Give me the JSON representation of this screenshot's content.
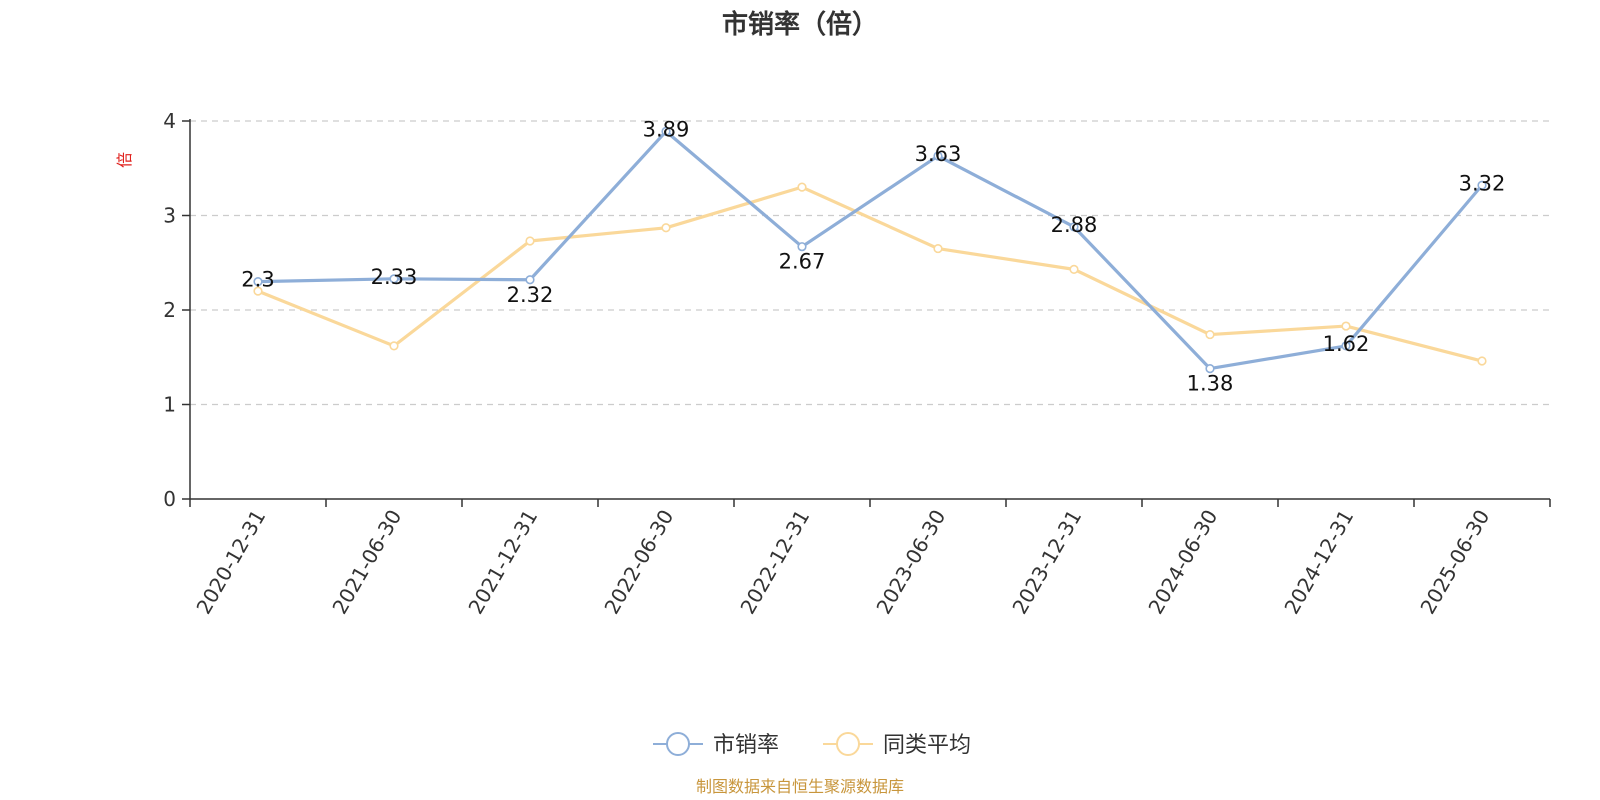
{
  "chart_data": {
    "type": "line",
    "title": "市销率（倍）",
    "ylabel": "倍",
    "ylim": [
      0,
      4
    ],
    "yticks": [
      0,
      1,
      2,
      3,
      4
    ],
    "x": [
      "2020-12-31",
      "2021-06-30",
      "2021-12-31",
      "2022-06-30",
      "2022-12-31",
      "2023-06-30",
      "2023-12-31",
      "2024-06-30",
      "2024-12-31",
      "2025-06-30"
    ],
    "series": [
      {
        "name": "市销率",
        "color": "#8eaed8",
        "values": [
          2.3,
          2.33,
          2.32,
          3.89,
          2.67,
          3.63,
          2.88,
          1.38,
          1.62,
          3.32
        ],
        "labels": [
          "2.3",
          "2.33",
          "2.32",
          "3.89",
          "2.67",
          "3.63",
          "2.88",
          "1.38",
          "1.62",
          "3.32"
        ]
      },
      {
        "name": "同类平均",
        "color": "#fad89a",
        "values": [
          2.2,
          1.62,
          2.73,
          2.87,
          3.3,
          2.65,
          2.43,
          1.74,
          1.83,
          1.46
        ]
      }
    ],
    "grid": true,
    "legend_position": "bottom-center",
    "source": "制图数据来自恒生聚源数据库",
    "colors": {
      "ylabel": "#e0201c",
      "source": "#c8963c",
      "axis": "#333333",
      "grid": "#cccccc"
    }
  }
}
